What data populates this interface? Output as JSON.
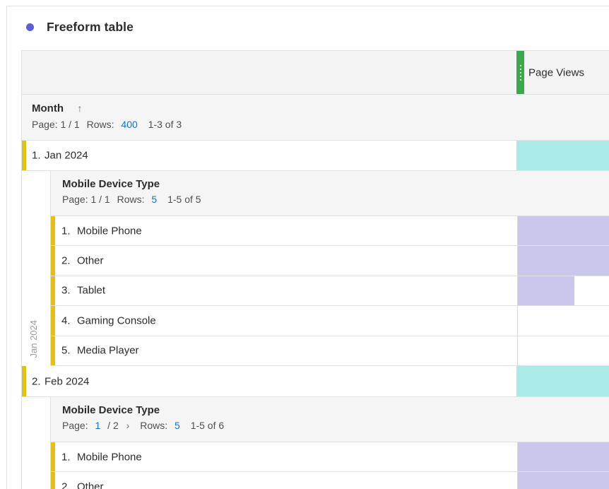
{
  "colors": {
    "accent_dot_purple": "#5c5ce0",
    "metric_handle_green": "#3da74e",
    "row_accent_yellow": "#e1c117",
    "month_total_cell_teal": "#aceae8",
    "breakdown_bar_purple": "#c9c7eb",
    "link_blue": "#1473e6"
  },
  "title": "Freeform table",
  "table": {
    "metric_column": {
      "label": "Page Views",
      "handle_icon": "drag-handle-dots"
    },
    "dimension_header": {
      "label": "Month",
      "sort_icon": "↑",
      "pagination": {
        "page_text": "Page: 1 / 1",
        "rows_label": "Rows:",
        "rows_value": "400",
        "range": "1-3 of 3"
      }
    },
    "groups": [
      {
        "row": {
          "num": "1.",
          "label": "Jan 2024"
        },
        "side_label": "Jan 2024",
        "breakdown": {
          "title": "Mobile Device Type",
          "pagination": {
            "page_text": "Page: 1 / 1",
            "rows_label": "Rows:",
            "rows_value": "5",
            "range": "1-5 of 5"
          },
          "rows": [
            {
              "num": "1.",
              "label": "Mobile Phone",
              "bar": "full"
            },
            {
              "num": "2.",
              "label": "Other",
              "bar": "full"
            },
            {
              "num": "3.",
              "label": "Tablet",
              "bar": "partial"
            },
            {
              "num": "4.",
              "label": "Gaming Console",
              "bar": "none"
            },
            {
              "num": "5.",
              "label": "Media Player",
              "bar": "none"
            }
          ]
        }
      },
      {
        "row": {
          "num": "2.",
          "label": "Feb 2024"
        },
        "side_label": "",
        "breakdown": {
          "title": "Mobile Device Type",
          "pagination": {
            "page_label": "Page:",
            "page_current": "1",
            "page_total": "/ 2",
            "next_icon": "›",
            "rows_label": "Rows:",
            "rows_value": "5",
            "range": "1-5 of 6"
          },
          "rows": [
            {
              "num": "1.",
              "label": "Mobile Phone",
              "bar": "full"
            },
            {
              "num": "2.",
              "label": "Other",
              "bar": "full"
            }
          ]
        }
      }
    ]
  }
}
